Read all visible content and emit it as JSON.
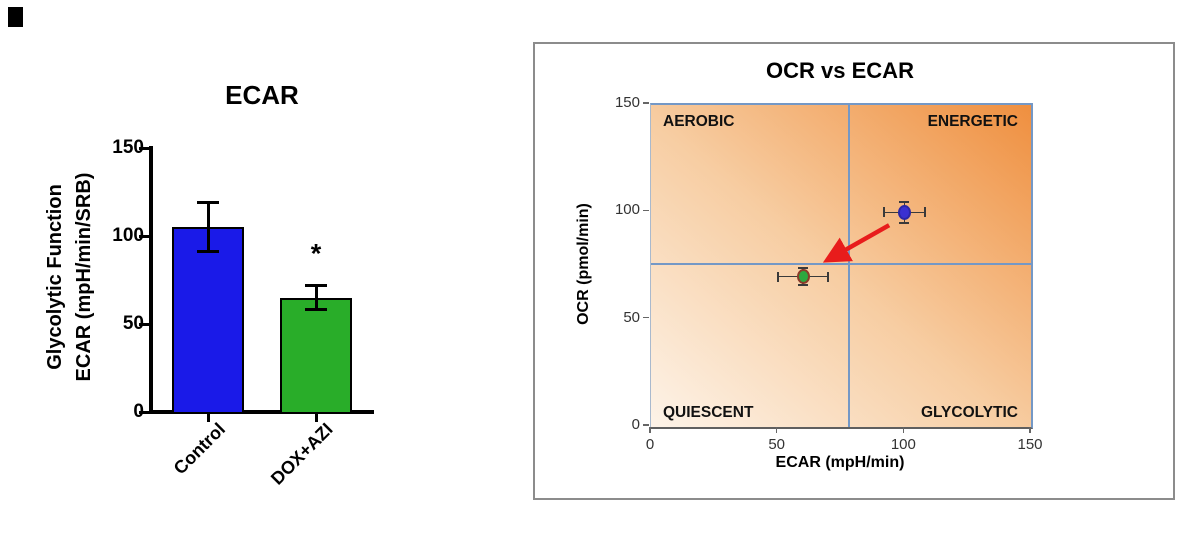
{
  "chart_data": [
    {
      "type": "bar",
      "title": "ECAR",
      "ylabel_line1": "Glycolytic Function",
      "ylabel_line2": "ECAR (mpH/min/SRB)",
      "categories": [
        "Control",
        "DOX+AZI"
      ],
      "values": [
        105,
        65
      ],
      "errors": [
        14,
        7
      ],
      "significance": [
        "",
        "*"
      ],
      "bar_colors": [
        "#1a1ae8",
        "#29ad29"
      ],
      "bar_border_color": "#000000",
      "ylim": [
        0,
        150
      ],
      "yticks": [
        0,
        50,
        100,
        150
      ]
    },
    {
      "type": "scatter",
      "title": "OCR vs ECAR",
      "xlabel": "ECAR (mpH/min)",
      "ylabel": "OCR (pmol/min)",
      "xlim": [
        0,
        150
      ],
      "ylim": [
        0,
        150
      ],
      "xticks": [
        0,
        50,
        100,
        150
      ],
      "yticks": [
        0,
        50,
        100,
        150
      ],
      "quadrants": {
        "top_left": "AEROBIC",
        "top_right": "ENERGETIC",
        "bottom_left": "QUIESCENT",
        "bottom_right": "GLYCOLYTIC"
      },
      "dividers": {
        "x": 78,
        "y": 76
      },
      "divider_color": "#7498c6",
      "points": [
        {
          "name": "Control",
          "x": 100,
          "y": 100,
          "xerr": 8,
          "yerr": 5,
          "color": "#3a30d2",
          "ring": "#2b27a6"
        },
        {
          "name": "DOX+AZI",
          "x": 60,
          "y": 70,
          "xerr": 10,
          "yerr": 4,
          "color": "#2da73f",
          "ring": "#8a3b2a"
        }
      ],
      "arrow": {
        "x1": 94,
        "y1": 94,
        "x2": 70,
        "y2": 78,
        "color": "#e81c1c"
      },
      "gradient": {
        "from": "#fdf3e8",
        "mid": "#f7cda2",
        "to": "#ef8f3f"
      }
    }
  ]
}
